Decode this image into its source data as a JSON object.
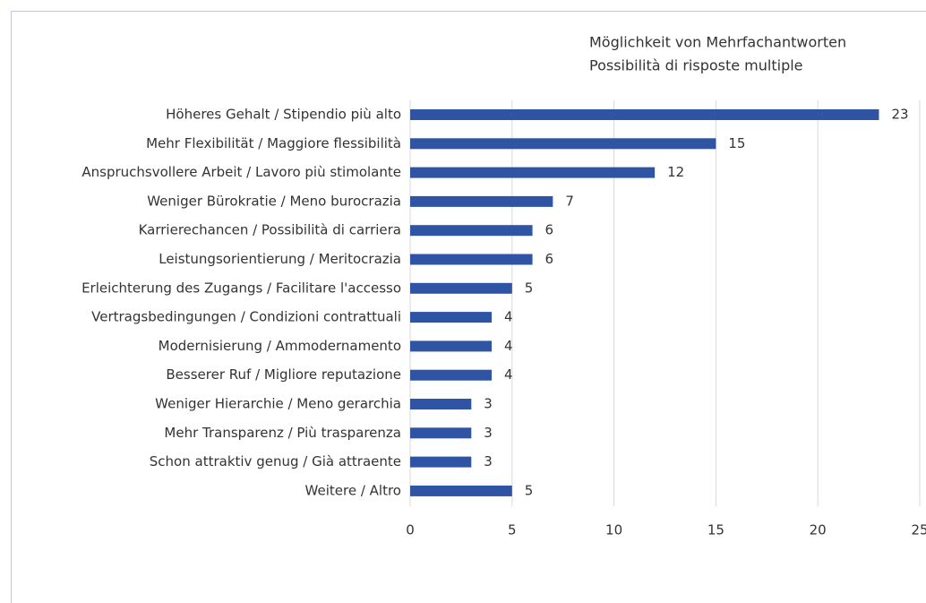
{
  "chart_data": {
    "type": "bar",
    "orientation": "horizontal",
    "annotations": [
      "Möglichkeit von Mehrfachantworten",
      "Possibilità di risposte multiple"
    ],
    "categories": [
      "Höheres Gehalt / Stipendio più alto",
      "Mehr Flexibilität / Maggiore flessibilità",
      "Anspruchsvollere Arbeit / Lavoro più stimolante",
      "Weniger Bürokratie / Meno burocrazia",
      "Karrierechancen / Possibilità di carriera",
      "Leistungsorientierung / Meritocrazia",
      "Erleichterung des Zugangs / Facilitare l'accesso",
      "Vertragsbedingungen / Condizioni contrattuali",
      "Modernisierung / Ammodernamento",
      "Besserer Ruf / Migliore reputazione",
      "Weniger Hierarchie / Meno gerarchia",
      "Mehr Transparenz / Più trasparenza",
      "Schon attraktiv genug / Già attraente",
      "Weitere / Altro"
    ],
    "values": [
      23,
      15,
      12,
      7,
      6,
      6,
      5,
      4,
      4,
      4,
      3,
      3,
      3,
      5
    ],
    "color": "#2e54a3",
    "xlim": [
      0,
      25
    ],
    "xticks": [
      0,
      5,
      10,
      15,
      20,
      25
    ],
    "grid": true
  }
}
